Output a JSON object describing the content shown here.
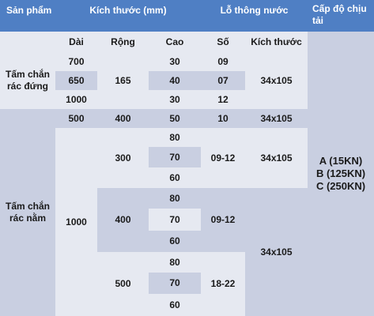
{
  "headers": {
    "san_pham": "Sản phẩm",
    "kich_thuoc_mm": "Kích thước (mm)",
    "lo_thong_nuoc": "Lỗ thông nước",
    "cap_do_chiu_tai": "Cấp độ chịu tải"
  },
  "subheaders": {
    "dai": "Dài",
    "rong": "Rộng",
    "cao": "Cao",
    "so": "Số",
    "kich_thuoc": "Kích thước"
  },
  "products": {
    "tam_chan_rac_dung": "Tấm chắn rác đứng",
    "tam_chan_rac_nam": "Tấm chắn rác nằm"
  },
  "load_classes": [
    "A (15KN)",
    "B (125KN)",
    "C (250KN)"
  ],
  "rows": {
    "dai": [
      "700",
      "650",
      "1000",
      "500",
      "1000"
    ],
    "rong": [
      "165",
      "400",
      "300",
      "400",
      "500"
    ],
    "cao": [
      "30",
      "40",
      "30",
      "50",
      "80",
      "70",
      "60",
      "80",
      "70",
      "60",
      "80",
      "70",
      "60"
    ],
    "so": [
      "09",
      "07",
      "12",
      "10",
      "09-12",
      "09-12",
      "18-22"
    ],
    "kich_thuoc": [
      "34x105",
      "34x105",
      "34x105",
      "34x105"
    ]
  },
  "colors": {
    "header_bg": "#4f7fc4",
    "light_cell": "#e6e9f1",
    "dark_cell": "#c9cfe1"
  }
}
